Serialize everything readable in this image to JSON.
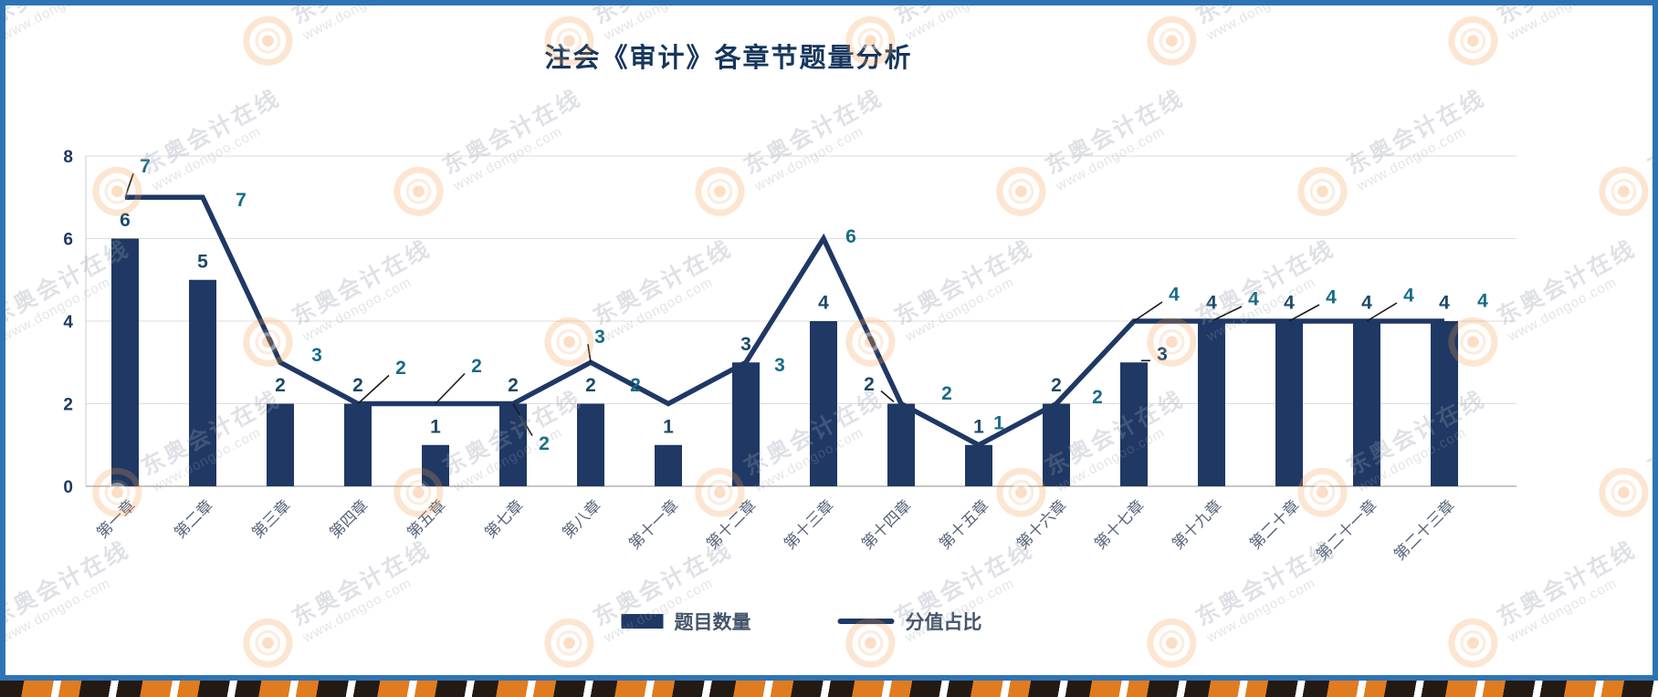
{
  "title": "注会《审计》各章节题量分析",
  "legend": [
    {
      "label": "题目数量",
      "swatch": "bar"
    },
    {
      "label": "分值占比",
      "swatch": "line"
    }
  ],
  "watermark": {
    "brand": "东奥会计在线",
    "url": "www.dongoo.com",
    "logo": "dongao-ring-logo"
  },
  "y_axis": {
    "ticks": [
      "0",
      "2",
      "4",
      "6",
      "8"
    ]
  },
  "colors": {
    "bar": "#1F3864",
    "line": "#1F3864",
    "bar_label": "#1D4968",
    "line_label": "#176B86",
    "axis_tick": "#1F3864",
    "x_label": "#566379",
    "title": "#16365D",
    "legend_text": "#44546A",
    "grid": "#DDDDDD",
    "frame_border": "#2E74B5",
    "watermark_orange": "#F2994A",
    "banner_orange": "#E07C1F",
    "banner_dark": "#241A14"
  },
  "chart_data": {
    "type": "bar+line",
    "title": "注会《审计》各章节题量分析",
    "categories": [
      "第一章",
      "第二章",
      "第三章",
      "第四章",
      "第五章",
      "第七章",
      "第八章",
      "第十一章",
      "第十二章",
      "第十三章",
      "第十四章",
      "第十五章",
      "第十六章",
      "第十七章",
      "第十九章",
      "第二十章",
      "第二十一章",
      "第二十三章"
    ],
    "series": [
      {
        "name": "题目数量",
        "type": "bar",
        "values": [
          6,
          5,
          2,
          2,
          1,
          2,
          2,
          1,
          3,
          4,
          2,
          1,
          2,
          3,
          4,
          4,
          4,
          4
        ]
      },
      {
        "name": "分值占比",
        "type": "line",
        "values": [
          7,
          7,
          3,
          2,
          2,
          2,
          3,
          2,
          3,
          6,
          2,
          1,
          2,
          4,
          4,
          4,
          4,
          4
        ]
      }
    ],
    "xlabel": "",
    "ylabel": "",
    "ylim": [
      0,
      8
    ],
    "yticks": [
      0,
      2,
      4,
      6,
      8
    ],
    "grid": "horizontal",
    "legend_position": "bottom",
    "data_labels": true
  }
}
